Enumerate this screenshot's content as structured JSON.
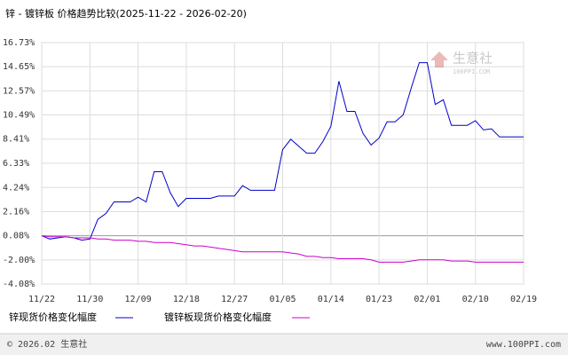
{
  "chart_data": {
    "type": "line",
    "title": "锌 - 镀锌板 价格趋势比较(2025-11-22 - 2026-02-20)",
    "watermark": "生意社",
    "watermark_url": "100PPI.COM",
    "footer_left": "© 2026.02 生意社",
    "footer_right": "www.100PPI.com",
    "categories": [
      "11/22",
      null,
      null,
      null,
      null,
      null,
      "11/30",
      null,
      null,
      null,
      null,
      null,
      "12/09",
      null,
      null,
      null,
      null,
      null,
      "12/18",
      null,
      null,
      null,
      null,
      null,
      "12/27",
      null,
      null,
      null,
      null,
      null,
      "01/05",
      null,
      null,
      null,
      null,
      null,
      "01/14",
      null,
      null,
      null,
      null,
      null,
      "01/23",
      null,
      null,
      null,
      null,
      null,
      "02/01",
      null,
      null,
      null,
      null,
      null,
      "02/10",
      null,
      null,
      null,
      null,
      null,
      "02/19"
    ],
    "ylim": [
      -4.08,
      16.73
    ],
    "yticks": [
      {
        "value": -4.08,
        "label": "-4.08%"
      },
      {
        "value": -2.0,
        "label": "-2.00%"
      },
      {
        "value": 0.08,
        "label": "0.08%"
      },
      {
        "value": 2.16,
        "label": "2.16%"
      },
      {
        "value": 4.24,
        "label": "4.24%"
      },
      {
        "value": 6.33,
        "label": "6.33%"
      },
      {
        "value": 8.41,
        "label": "8.41%"
      },
      {
        "value": 10.49,
        "label": "10.49%"
      },
      {
        "value": 12.57,
        "label": "12.57%"
      },
      {
        "value": 14.65,
        "label": "14.65%"
      },
      {
        "value": 16.73,
        "label": "16.73%"
      }
    ],
    "grid": true,
    "series": [
      {
        "name": "锌现货价格变化幅度",
        "color": "#0000cc",
        "values": [
          0.08,
          -0.2,
          -0.1,
          0.0,
          -0.1,
          -0.3,
          -0.2,
          1.5,
          2.0,
          3.0,
          3.0,
          3.0,
          3.4,
          3.0,
          5.6,
          5.6,
          3.8,
          2.6,
          3.3,
          3.3,
          3.3,
          3.3,
          3.5,
          3.5,
          3.5,
          4.4,
          4.0,
          4.0,
          4.0,
          4.0,
          7.5,
          8.4,
          7.8,
          7.2,
          7.2,
          8.2,
          9.5,
          13.4,
          10.8,
          10.8,
          8.9,
          7.9,
          8.5,
          9.9,
          9.9,
          10.5,
          12.8,
          15.0,
          15.0,
          11.4,
          11.8,
          9.6,
          9.6,
          9.6,
          10.0,
          9.2,
          9.3,
          8.6,
          8.6,
          8.6,
          8.6
        ]
      },
      {
        "name": "镀锌板现货价格变化幅度",
        "color": "#cc00cc",
        "values": [
          0.08,
          0.0,
          0.0,
          0.0,
          -0.1,
          -0.1,
          -0.1,
          -0.2,
          -0.2,
          -0.3,
          -0.3,
          -0.3,
          -0.4,
          -0.4,
          -0.5,
          -0.5,
          -0.5,
          -0.6,
          -0.7,
          -0.8,
          -0.8,
          -0.9,
          -1.0,
          -1.1,
          -1.2,
          -1.3,
          -1.3,
          -1.3,
          -1.3,
          -1.3,
          -1.3,
          -1.4,
          -1.5,
          -1.7,
          -1.7,
          -1.8,
          -1.8,
          -1.9,
          -1.9,
          -1.9,
          -1.9,
          -2.0,
          -2.2,
          -2.2,
          -2.2,
          -2.2,
          -2.1,
          -2.0,
          -2.0,
          -2.0,
          -2.0,
          -2.1,
          -2.1,
          -2.1,
          -2.2,
          -2.2,
          -2.2,
          -2.2,
          -2.2,
          -2.2,
          -2.2
        ]
      }
    ]
  }
}
